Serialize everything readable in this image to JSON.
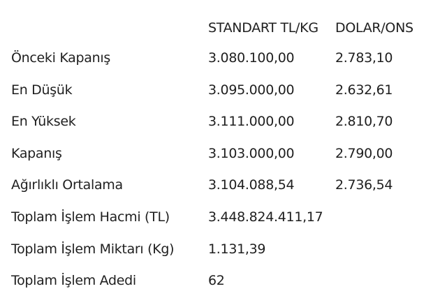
{
  "table": {
    "header": [
      "STANDART TL/KG",
      "DOLAR/ONS"
    ],
    "rows": [
      [
        "Önceki Kapanış",
        "3.080.100,00",
        "2.783,10"
      ],
      [
        "En Düşük",
        "3.095.000,00",
        "2.632,61"
      ],
      [
        "En Yüksek",
        "3.111.000,00",
        "2.810,70"
      ],
      [
        "Kapanış",
        "3.103.000,00",
        "2.790,00"
      ],
      [
        "Ağırlıklı Ortalama",
        "3.104.088,54",
        "2.736,54"
      ],
      [
        "Toplam İşlem Hacmi (TL)",
        "3.448.824.411,17"
      ],
      [
        "Toplam İşlem Miktarı (Kg)",
        "1.131,39"
      ],
      [
        "Toplam İşlem Adedi",
        "62"
      ]
    ]
  }
}
